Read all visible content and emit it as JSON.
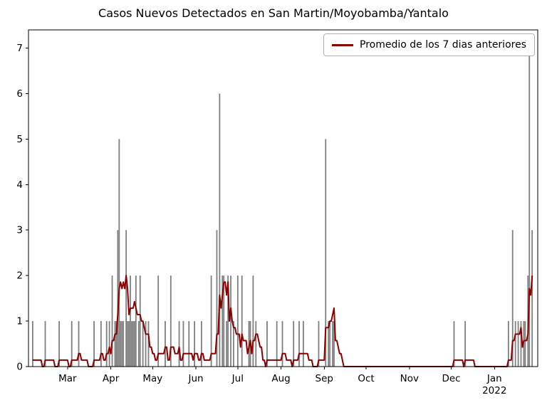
{
  "chart_data": {
    "type": "bar+line",
    "title": "Casos Nuevos Detectados en San Martin/Moyobamba/Yantalo",
    "legend_label": "Promedio de los 7 dias anteriores",
    "legend_position": "upper right",
    "grid": false,
    "x_start_date": "2021-02-01",
    "x_domain_days": 365,
    "ylim": [
      0,
      7.4
    ],
    "y_ticks": [
      0,
      1,
      2,
      3,
      4,
      5,
      6,
      7
    ],
    "x_ticks": [
      {
        "day": 28,
        "label": "Mar"
      },
      {
        "day": 59,
        "label": "Apr"
      },
      {
        "day": 89,
        "label": "May"
      },
      {
        "day": 120,
        "label": "Jun"
      },
      {
        "day": 150,
        "label": "Jul"
      },
      {
        "day": 181,
        "label": "Aug"
      },
      {
        "day": 212,
        "label": "Sep"
      },
      {
        "day": 242,
        "label": "Oct"
      },
      {
        "day": 273,
        "label": "Nov"
      },
      {
        "day": 303,
        "label": "Dec"
      },
      {
        "day": 334,
        "label": "Jan",
        "sublabel": "2022"
      }
    ],
    "bars_daily_counts_day_value": [
      [
        3,
        1
      ],
      [
        12,
        1
      ],
      [
        22,
        1
      ],
      [
        31,
        1
      ],
      [
        36,
        1
      ],
      [
        47,
        1
      ],
      [
        52,
        1
      ],
      [
        56,
        1
      ],
      [
        58,
        1
      ],
      [
        60,
        2
      ],
      [
        62,
        1
      ],
      [
        63,
        1
      ],
      [
        64,
        3
      ],
      [
        65,
        5
      ],
      [
        66,
        1
      ],
      [
        67,
        1
      ],
      [
        68,
        1
      ],
      [
        70,
        3
      ],
      [
        71,
        1
      ],
      [
        72,
        1
      ],
      [
        73,
        2
      ],
      [
        74,
        1
      ],
      [
        75,
        1
      ],
      [
        76,
        1
      ],
      [
        77,
        2
      ],
      [
        79,
        1
      ],
      [
        80,
        2
      ],
      [
        82,
        1
      ],
      [
        84,
        1
      ],
      [
        86,
        1
      ],
      [
        93,
        2
      ],
      [
        98,
        1
      ],
      [
        102,
        2
      ],
      [
        108,
        1
      ],
      [
        111,
        1
      ],
      [
        115,
        1
      ],
      [
        119,
        1
      ],
      [
        124,
        1
      ],
      [
        131,
        2
      ],
      [
        135,
        3
      ],
      [
        137,
        6
      ],
      [
        139,
        2
      ],
      [
        140,
        2
      ],
      [
        142,
        1
      ],
      [
        143,
        2
      ],
      [
        145,
        2
      ],
      [
        147,
        1
      ],
      [
        150,
        2
      ],
      [
        153,
        2
      ],
      [
        158,
        1
      ],
      [
        159,
        1
      ],
      [
        161,
        2
      ],
      [
        163,
        1
      ],
      [
        171,
        1
      ],
      [
        178,
        1
      ],
      [
        182,
        1
      ],
      [
        190,
        1
      ],
      [
        194,
        1
      ],
      [
        197,
        1
      ],
      [
        208,
        1
      ],
      [
        213,
        5
      ],
      [
        215,
        1
      ],
      [
        216,
        1
      ],
      [
        218,
        1
      ],
      [
        219,
        1
      ],
      [
        305,
        1
      ],
      [
        313,
        1
      ],
      [
        344,
        1
      ],
      [
        347,
        3
      ],
      [
        349,
        1
      ],
      [
        351,
        1
      ],
      [
        353,
        1
      ],
      [
        355,
        1
      ],
      [
        356,
        1
      ],
      [
        358,
        2
      ],
      [
        359,
        7
      ],
      [
        361,
        3
      ]
    ],
    "line_window_days": 7,
    "line_rule": "trailing mean of previous 7 days computed from daily counts",
    "line_start_day": 3,
    "line_end_day": 361,
    "colors": {
      "bars": "#7f7f7f",
      "line": "#8b0000",
      "axis": "#000000",
      "background": "#ffffff"
    }
  }
}
